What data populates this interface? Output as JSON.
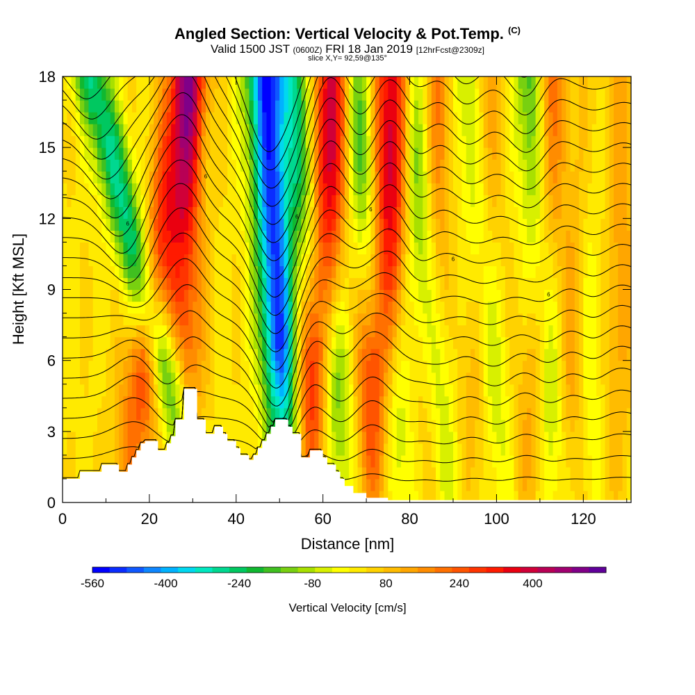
{
  "header": {
    "title": "Angled Section: Vertical Velocity & Pot.Temp.",
    "title_suffix": "(C)",
    "valid_prefix": "Valid 1500 JST",
    "valid_z": "(0600Z)",
    "valid_date": "FRI 18 Jan 2019",
    "forecast": "[12hrFcst@2309z]",
    "slice": "slice X,Y= 92,59@135°"
  },
  "chart_data": {
    "type": "heatmap",
    "xlabel": "Distance [nm]",
    "ylabel": "Height [Kft MSL]",
    "xlim": [
      0,
      131
    ],
    "ylim": [
      0,
      18
    ],
    "x_ticks": [
      0,
      20,
      40,
      60,
      80,
      100,
      120
    ],
    "y_ticks": [
      0,
      3,
      6,
      9,
      12,
      15,
      18
    ],
    "grid": false,
    "colorbar": {
      "title": "Vertical Velocity [cm/s]",
      "min": -560,
      "max": 560,
      "step": 40,
      "tick_labels": [
        -560,
        -400,
        -240,
        -80,
        80,
        240,
        400
      ],
      "colors": [
        "#0000ff",
        "#0a2cff",
        "#0f58ff",
        "#0e86ff",
        "#00b2ff",
        "#00d8f0",
        "#00e8c0",
        "#00d890",
        "#00c860",
        "#10b830",
        "#40c020",
        "#78d010",
        "#a8e000",
        "#d8f000",
        "#ffff00",
        "#ffea00",
        "#ffd200",
        "#ffbc00",
        "#ffa600",
        "#ff8c00",
        "#ff7000",
        "#ff5400",
        "#ff3400",
        "#ff1a00",
        "#ea0010",
        "#d00038",
        "#b80055",
        "#a00070",
        "#800088",
        "#60009a"
      ]
    },
    "velocity_waves": [
      {
        "x_ground": 15,
        "sign": 1,
        "amplitude": 280,
        "width": 3.5,
        "tilt": 0.25
      },
      {
        "x_ground": 31,
        "sign": -1,
        "amplitude": 300,
        "width": 3.0,
        "tilt": -0.45
      },
      {
        "x_ground": 29,
        "sign": 1,
        "amplitude": 200,
        "width": 2.5,
        "tilt": 0.0
      },
      {
        "x_ground": 52,
        "sign": -1,
        "amplitude": 520,
        "width": 3.0,
        "tilt": -0.1
      },
      {
        "x_ground": 56,
        "sign": 1,
        "amplitude": 420,
        "width": 3.0,
        "tilt": 0.12
      },
      {
        "x_ground": 66,
        "sign": -1,
        "amplitude": 260,
        "width": 3.2,
        "tilt": -0.25
      },
      {
        "x_ground": 71,
        "sign": 1,
        "amplitude": 420,
        "width": 3.2,
        "tilt": 0.1
      },
      {
        "x_ground": 78,
        "sign": -1,
        "amplitude": 240,
        "width": 3.0,
        "tilt": -0.2
      },
      {
        "x_ground": 84,
        "sign": 1,
        "amplitude": 170,
        "width": 2.5,
        "tilt": 0.05
      },
      {
        "x_ground": 88,
        "sign": -1,
        "amplitude": 220,
        "width": 2.8,
        "tilt": -0.15
      },
      {
        "x_ground": 95,
        "sign": 1,
        "amplitude": 120,
        "width": 3.0,
        "tilt": 0.05
      },
      {
        "x_ground": 101,
        "sign": -1,
        "amplitude": 160,
        "width": 2.6,
        "tilt": -0.15
      },
      {
        "x_ground": 108,
        "sign": 1,
        "amplitude": 200,
        "width": 2.8,
        "tilt": 0.08
      },
      {
        "x_ground": 113,
        "sign": -1,
        "amplitude": 240,
        "width": 2.6,
        "tilt": -0.1
      },
      {
        "x_ground": 117,
        "sign": 1,
        "amplitude": 150,
        "width": 2.6,
        "tilt": 0.05
      },
      {
        "x_ground": 122,
        "sign": -1,
        "amplitude": 120,
        "width": 2.6,
        "tilt": -0.05
      },
      {
        "x_ground": 127,
        "sign": 1,
        "amplitude": 100,
        "width": 2.6,
        "tilt": 0.05
      }
    ],
    "terrain_kft": [
      [
        0,
        1.0
      ],
      [
        4,
        1.0
      ],
      [
        4,
        1.3
      ],
      [
        9,
        1.3
      ],
      [
        9,
        1.6
      ],
      [
        13,
        1.6
      ],
      [
        13,
        1.3
      ],
      [
        15,
        1.3
      ],
      [
        15,
        1.6
      ],
      [
        16,
        1.6
      ],
      [
        16,
        1.9
      ],
      [
        17,
        1.9
      ],
      [
        17,
        2.2
      ],
      [
        18,
        2.2
      ],
      [
        18,
        2.5
      ],
      [
        19,
        2.5
      ],
      [
        19,
        2.6
      ],
      [
        22,
        2.6
      ],
      [
        22,
        2.2
      ],
      [
        24,
        2.2
      ],
      [
        24,
        2.5
      ],
      [
        25,
        2.5
      ],
      [
        25,
        2.8
      ],
      [
        26,
        2.8
      ],
      [
        26,
        3.5
      ],
      [
        28,
        3.5
      ],
      [
        28,
        4.8
      ],
      [
        31,
        4.8
      ],
      [
        31,
        3.5
      ],
      [
        33,
        3.5
      ],
      [
        33,
        2.9
      ],
      [
        35,
        2.9
      ],
      [
        35,
        3.2
      ],
      [
        37,
        3.2
      ],
      [
        37,
        2.9
      ],
      [
        38,
        2.9
      ],
      [
        38,
        2.6
      ],
      [
        40,
        2.6
      ],
      [
        40,
        2.3
      ],
      [
        41,
        2.3
      ],
      [
        41,
        2.0
      ],
      [
        43,
        2.0
      ],
      [
        43,
        1.8
      ],
      [
        44,
        1.8
      ],
      [
        44,
        2.0
      ],
      [
        45,
        2.0
      ],
      [
        45,
        2.3
      ],
      [
        46,
        2.3
      ],
      [
        46,
        2.6
      ],
      [
        47,
        2.6
      ],
      [
        47,
        2.9
      ],
      [
        48,
        2.9
      ],
      [
        48,
        3.2
      ],
      [
        49,
        3.2
      ],
      [
        49,
        3.5
      ],
      [
        52,
        3.5
      ],
      [
        52,
        3.2
      ],
      [
        53,
        3.2
      ],
      [
        53,
        2.9
      ],
      [
        55,
        2.9
      ],
      [
        55,
        1.9
      ],
      [
        57,
        1.9
      ],
      [
        57,
        2.2
      ],
      [
        60,
        2.2
      ],
      [
        60,
        1.9
      ],
      [
        61,
        1.9
      ],
      [
        61,
        1.6
      ],
      [
        63,
        1.6
      ],
      [
        63,
        1.3
      ],
      [
        64,
        1.3
      ],
      [
        64,
        1.0
      ],
      [
        65,
        1.0
      ],
      [
        65,
        0.7
      ],
      [
        67,
        0.7
      ],
      [
        67,
        0.4
      ],
      [
        70,
        0.4
      ],
      [
        70,
        0.2
      ],
      [
        75,
        0.2
      ],
      [
        75,
        0.1
      ],
      [
        131,
        0.1
      ]
    ],
    "contour_label_value": "6",
    "theta_contours_count": 22
  }
}
